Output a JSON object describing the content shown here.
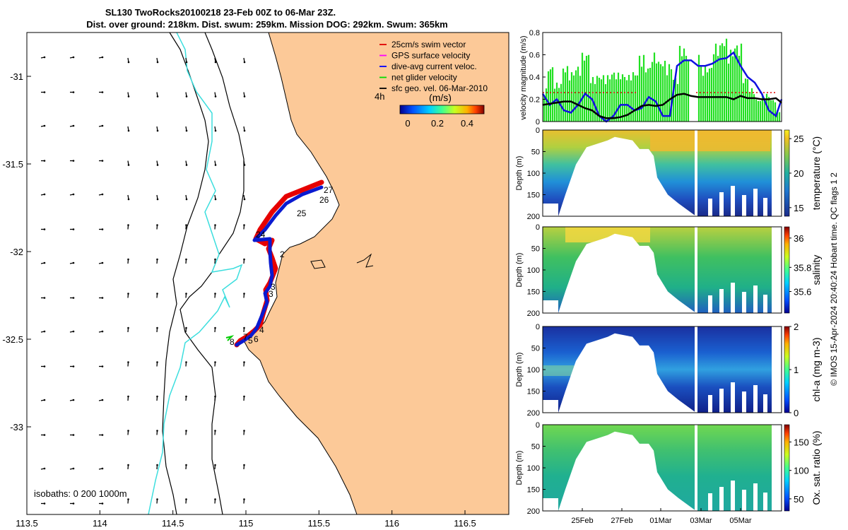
{
  "title": {
    "line1": "SL130 TwoRocks20100218 23-Feb 00Z to 06-Mar 23Z.",
    "line2": "Dist. over ground: 218km. Dist. swum: 259km. Mission DOG: 292km. Swum: 365km"
  },
  "legend": {
    "items": [
      {
        "label": "25cm/s swim vector",
        "color": "#e00000"
      },
      {
        "label": "GPS surface velocity",
        "color": "#ff00ff"
      },
      {
        "label": "dive-avg current veloc.",
        "color": "#0000ff"
      },
      {
        "label": "net glider velocity",
        "color": "#00dd00"
      },
      {
        "label": "sfc geo. vel. 06-Mar-2010",
        "color": "#000000"
      }
    ]
  },
  "colorbar": {
    "label": "(m/s)",
    "tag": "4h",
    "ticks": [
      "0",
      "0.2",
      "0.4"
    ]
  },
  "isobaths_label": "isobaths: 0   200  1000m",
  "credit": "© IMOS 15-Apr-2024 20:40:24 Hobart time. QC flags 1  2",
  "chart_data": [
    {
      "type": "scatter",
      "name": "map",
      "xlabel": "",
      "ylabel": "",
      "xticks": [
        "113.5",
        "114",
        "114.5",
        "115",
        "115.5",
        "116",
        "116.5"
      ],
      "yticks": [
        "-31",
        "-31.5",
        "-32",
        "-32.5",
        "-33"
      ],
      "xlim": [
        113.5,
        116.8
      ],
      "ylim": [
        -33.5,
        -30.75
      ],
      "track_labels": [
        "27",
        "26",
        "25",
        "24",
        "2",
        "3",
        "3",
        "4",
        "5",
        "6",
        "7",
        "8"
      ],
      "track_points": [
        {
          "lon": 115.5,
          "lat": -31.52
        },
        {
          "lon": 115.4,
          "lat": -31.58
        },
        {
          "lon": 115.3,
          "lat": -31.65
        },
        {
          "lon": 115.22,
          "lat": -31.72
        },
        {
          "lon": 115.15,
          "lat": -31.82
        },
        {
          "lon": 115.18,
          "lat": -31.95
        },
        {
          "lon": 115.18,
          "lat": -32.05
        },
        {
          "lon": 115.12,
          "lat": -32.2
        },
        {
          "lon": 115.05,
          "lat": -32.35
        },
        {
          "lon": 114.95,
          "lat": -32.47
        }
      ]
    },
    {
      "type": "line",
      "name": "velocity",
      "ylabel": "velocity magnitude (m/s)",
      "ylim": [
        0,
        0.8
      ],
      "yticks": [
        "0",
        "0.2",
        "0.4",
        "0.6",
        "0.8"
      ],
      "x": [
        0,
        10,
        20,
        30,
        40,
        50,
        60,
        70,
        80,
        90,
        100,
        110,
        120,
        130,
        140,
        150,
        160,
        170,
        180,
        190,
        200,
        210,
        220,
        230,
        240,
        250,
        260,
        270,
        280,
        290,
        300,
        310,
        320,
        330,
        338
      ],
      "series": [
        {
          "name": "dive-avg current veloc.",
          "values": [
            0.25,
            0.15,
            0.2,
            0.1,
            0.08,
            0.15,
            0.25,
            0.2,
            0.05,
            0.0,
            0.05,
            0.15,
            0.15,
            0.1,
            0.12,
            0.22,
            0.18,
            0.05,
            0.05,
            0.5,
            0.55,
            0.55,
            0.5,
            0.5,
            0.52,
            0.56,
            0.57,
            0.62,
            0.5,
            0.4,
            0.35,
            0.25,
            0.1,
            0.05,
            0.2
          ]
        },
        {
          "name": "sfc geo. vel.",
          "values": [
            0.15,
            0.16,
            0.17,
            0.18,
            0.18,
            0.15,
            0.12,
            0.1,
            0.05,
            0.03,
            0.03,
            0.04,
            0.06,
            0.1,
            0.14,
            0.15,
            0.14,
            0.15,
            0.2,
            0.24,
            0.25,
            0.23,
            0.22,
            0.22,
            0.22,
            0.22,
            0.22,
            0.2,
            0.23,
            0.21,
            0.21,
            0.2,
            0.2,
            0.21,
            0.17
          ]
        },
        {
          "name": "net glider velocity",
          "values": [
            0.3,
            0.5,
            0.35,
            0.5,
            0.45,
            0.5,
            0.62,
            0.4,
            0.42,
            0.42,
            0.45,
            0.44,
            0.42,
            0.45,
            0.6,
            0.5,
            0.62,
            0.55,
            0.52,
            0.4,
            0.68,
            0.62,
            0.65,
            0.5,
            0.5,
            0.7,
            0.75,
            0.65,
            0.7,
            0.4,
            0.3,
            0.2,
            0.25,
            0.2,
            0.1
          ]
        }
      ]
    },
    {
      "type": "heatmap",
      "name": "temperature",
      "ylabel": "Depth (m)",
      "cbar_label": "temperature (°C)",
      "cbar_ticks": [
        "25",
        "20",
        "15"
      ],
      "yticks": [
        "0",
        "50",
        "100",
        "150",
        "200"
      ]
    },
    {
      "type": "heatmap",
      "name": "salinity",
      "ylabel": "Depth (m)",
      "cbar_label": "salinity",
      "cbar_ticks": [
        "36",
        "35.8",
        "35.6"
      ],
      "yticks": [
        "0",
        "50",
        "100",
        "150",
        "200"
      ]
    },
    {
      "type": "heatmap",
      "name": "chla",
      "ylabel": "Depth (m)",
      "cbar_label": "chl-a (mg m-3)",
      "cbar_ticks": [
        "2",
        "1",
        "0"
      ],
      "yticks": [
        "0",
        "50",
        "100",
        "150",
        "200"
      ]
    },
    {
      "type": "heatmap",
      "name": "oxygen",
      "ylabel": "Depth (m)",
      "cbar_label": "Ox. sat. ratio (%)",
      "cbar_ticks": [
        "150",
        "100",
        "50"
      ],
      "yticks": [
        "0",
        "50",
        "100",
        "150",
        "200"
      ],
      "xticks": [
        "25Feb",
        "27Feb",
        "01Mar",
        "03Mar",
        "05Mar"
      ]
    }
  ]
}
